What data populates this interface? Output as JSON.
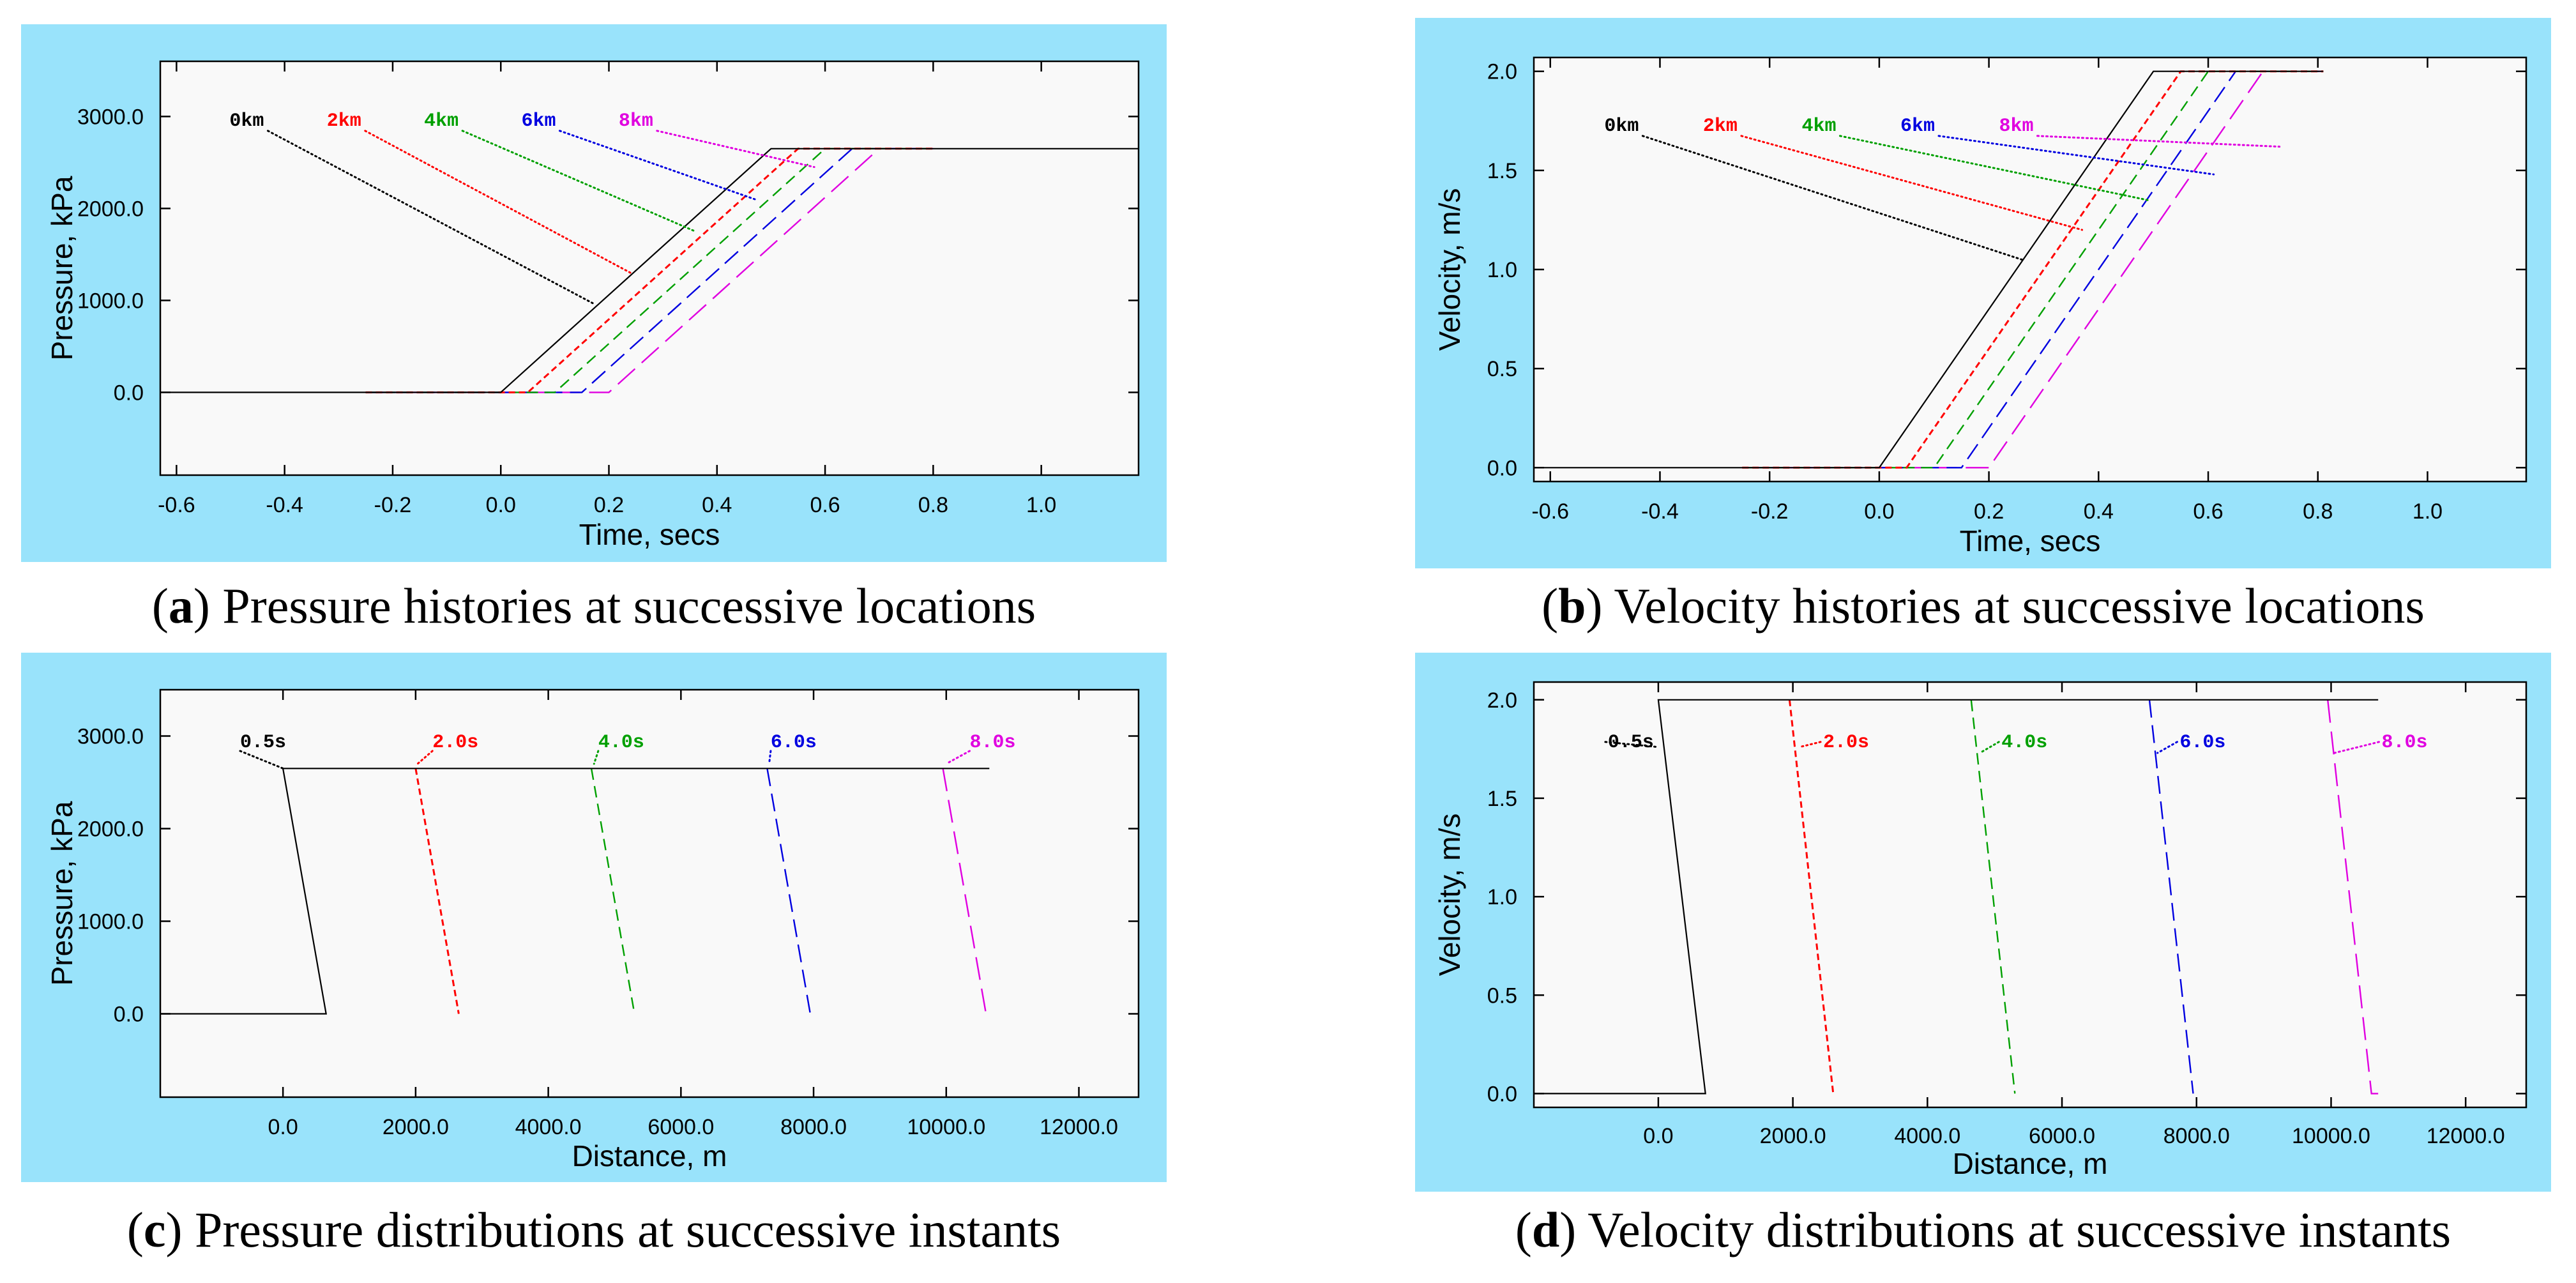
{
  "captions": [
    {
      "letter": "a",
      "text": " Pressure histories at successive locations"
    },
    {
      "letter": "b",
      "text": " Velocity histories at successive locations"
    },
    {
      "letter": "c",
      "text": " Pressure distributions at successive instants"
    },
    {
      "letter": "d",
      "text": " Velocity distributions at successive instants"
    }
  ],
  "colors": {
    "panel_bg": "#99e3fb",
    "plot_bg": "#f9f9f9",
    "series": [
      "#000000",
      "#ff0000",
      "#00a000",
      "#0000e0",
      "#e000e0"
    ]
  },
  "chart_data": [
    {
      "id": "a",
      "type": "line",
      "title": "Pressure histories at successive locations",
      "xlabel": "Time, secs",
      "ylabel": "Pressure, kPa",
      "xlim": [
        -0.63,
        1.18
      ],
      "ylim": [
        -900,
        3600
      ],
      "xticks": [
        -0.6,
        -0.4,
        -0.2,
        0.0,
        0.2,
        0.4,
        0.6,
        0.8,
        1.0
      ],
      "xticklabels": [
        "-0.6",
        "-0.4",
        "-0.2",
        "0.0",
        "0.2",
        "0.4",
        "0.6",
        "0.8",
        "1.0"
      ],
      "yticks": [
        0,
        1000,
        2000,
        3000
      ],
      "yticklabels": [
        "0.0",
        "1000.0",
        "2000.0",
        "3000.0"
      ],
      "series": [
        {
          "name": "0km",
          "x": [
            -0.63,
            0.0,
            0.5,
            1.18
          ],
          "y": [
            0,
            0,
            2650,
            2650
          ]
        },
        {
          "name": "2km",
          "x": [
            -0.25,
            0.05,
            0.55,
            0.8
          ],
          "y": [
            0,
            0,
            2650,
            2650
          ]
        },
        {
          "name": "4km",
          "x": [
            -0.25,
            0.1,
            0.6,
            0.8
          ],
          "y": [
            0,
            0,
            2650,
            2650
          ]
        },
        {
          "name": "6km",
          "x": [
            -0.25,
            0.15,
            0.65,
            0.8
          ],
          "y": [
            0,
            0,
            2650,
            2650
          ]
        },
        {
          "name": "8km",
          "x": [
            -0.25,
            0.2,
            0.7,
            0.8
          ],
          "y": [
            0,
            0,
            2650,
            2650
          ]
        }
      ],
      "annotations": [
        {
          "text": "0km",
          "series": 0,
          "label_x": -0.47,
          "label_y": 2900,
          "point_x": 0.17,
          "point_y": 970
        },
        {
          "text": "2km",
          "series": 1,
          "label_x": -0.29,
          "label_y": 2900,
          "point_x": 0.24,
          "point_y": 1300
        },
        {
          "text": "4km",
          "series": 2,
          "label_x": -0.11,
          "label_y": 2900,
          "point_x": 0.36,
          "point_y": 1750
        },
        {
          "text": "6km",
          "series": 3,
          "label_x": 0.07,
          "label_y": 2900,
          "point_x": 0.47,
          "point_y": 2100
        },
        {
          "text": "8km",
          "series": 4,
          "label_x": 0.25,
          "label_y": 2900,
          "point_x": 0.58,
          "point_y": 2450
        }
      ]
    },
    {
      "id": "b",
      "type": "line",
      "title": "Velocity histories at successive locations",
      "xlabel": "Time, secs",
      "ylabel": "Velocity, m/s",
      "xlim": [
        -0.63,
        1.18
      ],
      "ylim": [
        -0.07,
        2.07
      ],
      "xticks": [
        -0.6,
        -0.4,
        -0.2,
        0.0,
        0.2,
        0.4,
        0.6,
        0.8,
        1.0
      ],
      "xticklabels": [
        "-0.6",
        "-0.4",
        "-0.2",
        "0.0",
        "0.2",
        "0.4",
        "0.6",
        "0.8",
        "1.0"
      ],
      "yticks": [
        0.0,
        0.5,
        1.0,
        1.5,
        2.0
      ],
      "yticklabels": [
        "0.0",
        "0.5",
        "1.0",
        "1.5",
        "2.0"
      ],
      "series": [
        {
          "name": "0km",
          "x": [
            -0.63,
            0.0,
            0.5,
            0.81
          ],
          "y": [
            0,
            0,
            2.0,
            2.0
          ]
        },
        {
          "name": "2km",
          "x": [
            -0.25,
            0.05,
            0.55,
            0.81
          ],
          "y": [
            0,
            0,
            2.0,
            2.0
          ]
        },
        {
          "name": "4km",
          "x": [
            -0.25,
            0.1,
            0.6,
            0.81
          ],
          "y": [
            0,
            0,
            2.0,
            2.0
          ]
        },
        {
          "name": "6km",
          "x": [
            -0.25,
            0.15,
            0.65,
            0.81
          ],
          "y": [
            0,
            0,
            2.0,
            2.0
          ]
        },
        {
          "name": "8km",
          "x": [
            -0.25,
            0.2,
            0.7,
            0.81
          ],
          "y": [
            0,
            0,
            2.0,
            2.0
          ]
        }
      ],
      "annotations": [
        {
          "text": "0km",
          "series": 0,
          "label_x": -0.47,
          "label_y": 1.7,
          "point_x": 0.26,
          "point_y": 1.05
        },
        {
          "text": "2km",
          "series": 1,
          "label_x": -0.29,
          "label_y": 1.7,
          "point_x": 0.37,
          "point_y": 1.2
        },
        {
          "text": "4km",
          "series": 2,
          "label_x": -0.11,
          "label_y": 1.7,
          "point_x": 0.49,
          "point_y": 1.35
        },
        {
          "text": "6km",
          "series": 3,
          "label_x": 0.07,
          "label_y": 1.7,
          "point_x": 0.61,
          "point_y": 1.48
        },
        {
          "text": "8km",
          "series": 4,
          "label_x": 0.25,
          "label_y": 1.7,
          "point_x": 0.73,
          "point_y": 1.62
        }
      ]
    },
    {
      "id": "c",
      "type": "line",
      "title": "Pressure distributions at successive instants",
      "xlabel": "Distance, m",
      "ylabel": "Pressure, kPa",
      "xlim": [
        -1850,
        12900
      ],
      "ylim": [
        -900,
        3500
      ],
      "xticks": [
        0,
        2000,
        4000,
        6000,
        8000,
        10000,
        12000
      ],
      "xticklabels": [
        "0.0",
        "2000.0",
        "4000.0",
        "6000.0",
        "8000.0",
        "10000.0",
        "12000.0"
      ],
      "yticks": [
        0,
        1000,
        2000,
        3000
      ],
      "yticklabels": [
        "0.0",
        "1000.0",
        "2000.0",
        "3000.0"
      ],
      "series": [
        {
          "name": "0.5s",
          "x": [
            -1850,
            650,
            0,
            10650
          ],
          "y": [
            0,
            0,
            2650,
            2650
          ]
        },
        {
          "name": "2.0s",
          "x": [
            2000,
            2650
          ],
          "y": [
            2650,
            0
          ]
        },
        {
          "name": "4.0s",
          "x": [
            4650,
            5300
          ],
          "y": [
            2650,
            0
          ]
        },
        {
          "name": "6.0s",
          "x": [
            7300,
            7950
          ],
          "y": [
            2650,
            0
          ]
        },
        {
          "name": "8.0s",
          "x": [
            9950,
            10600,
            10650
          ],
          "y": [
            2650,
            0,
            0
          ]
        }
      ],
      "annotations": [
        {
          "text": "0.5s",
          "series": 0,
          "label_x": -300,
          "label_y": 2880,
          "point_x": 0,
          "point_y": 2650
        },
        {
          "text": "2.0s",
          "series": 1,
          "label_x": 2600,
          "label_y": 2880,
          "point_x": 2030,
          "point_y": 2700
        },
        {
          "text": "4.0s",
          "series": 2,
          "label_x": 5100,
          "label_y": 2880,
          "point_x": 4690,
          "point_y": 2700
        },
        {
          "text": "6.0s",
          "series": 3,
          "label_x": 7700,
          "label_y": 2880,
          "point_x": 7330,
          "point_y": 2700
        },
        {
          "text": "8.0s",
          "series": 4,
          "label_x": 10700,
          "label_y": 2880,
          "point_x": 10000,
          "point_y": 2700
        }
      ]
    },
    {
      "id": "d",
      "type": "line",
      "title": "Velocity distributions at successive instants",
      "xlabel": "Distance, m",
      "ylabel": "Velocity, m/s",
      "xlim": [
        -1850,
        12900
      ],
      "ylim": [
        -0.07,
        2.09
      ],
      "xticks": [
        0,
        2000,
        4000,
        6000,
        8000,
        10000,
        12000
      ],
      "xticklabels": [
        "0.0",
        "2000.0",
        "4000.0",
        "6000.0",
        "8000.0",
        "10000.0",
        "12000.0"
      ],
      "yticks": [
        0.0,
        0.5,
        1.0,
        1.5,
        2.0
      ],
      "yticklabels": [
        "0.0",
        "0.5",
        "1.0",
        "1.5",
        "2.0"
      ],
      "series": [
        {
          "name": "0.5s",
          "x": [
            -1850,
            700,
            0,
            10700
          ],
          "y": [
            0,
            0,
            2.0,
            2.0
          ]
        },
        {
          "name": "2.0s",
          "x": [
            1950,
            2600
          ],
          "y": [
            2.0,
            0
          ]
        },
        {
          "name": "4.0s",
          "x": [
            4650,
            5300
          ],
          "y": [
            2.0,
            0
          ]
        },
        {
          "name": "6.0s",
          "x": [
            7300,
            7950
          ],
          "y": [
            2.0,
            0
          ]
        },
        {
          "name": "8.0s",
          "x": [
            9950,
            10600,
            10700
          ],
          "y": [
            2.0,
            0,
            0
          ]
        }
      ],
      "annotations": [
        {
          "text": "0.5s",
          "series": 0,
          "label_x": -750,
          "label_y": 1.76,
          "point_x": 0,
          "point_y": 1.76
        },
        {
          "text": "2.0s",
          "series": 1,
          "label_x": 2450,
          "label_y": 1.76,
          "point_x": 2100,
          "point_y": 1.76
        },
        {
          "text": "4.0s",
          "series": 2,
          "label_x": 5100,
          "label_y": 1.76,
          "point_x": 4780,
          "point_y": 1.73
        },
        {
          "text": "6.0s",
          "series": 3,
          "label_x": 7750,
          "label_y": 1.76,
          "point_x": 7420,
          "point_y": 1.73
        },
        {
          "text": "8.0s",
          "series": 4,
          "label_x": 10750,
          "label_y": 1.76,
          "point_x": 10050,
          "point_y": 1.73
        }
      ]
    }
  ]
}
